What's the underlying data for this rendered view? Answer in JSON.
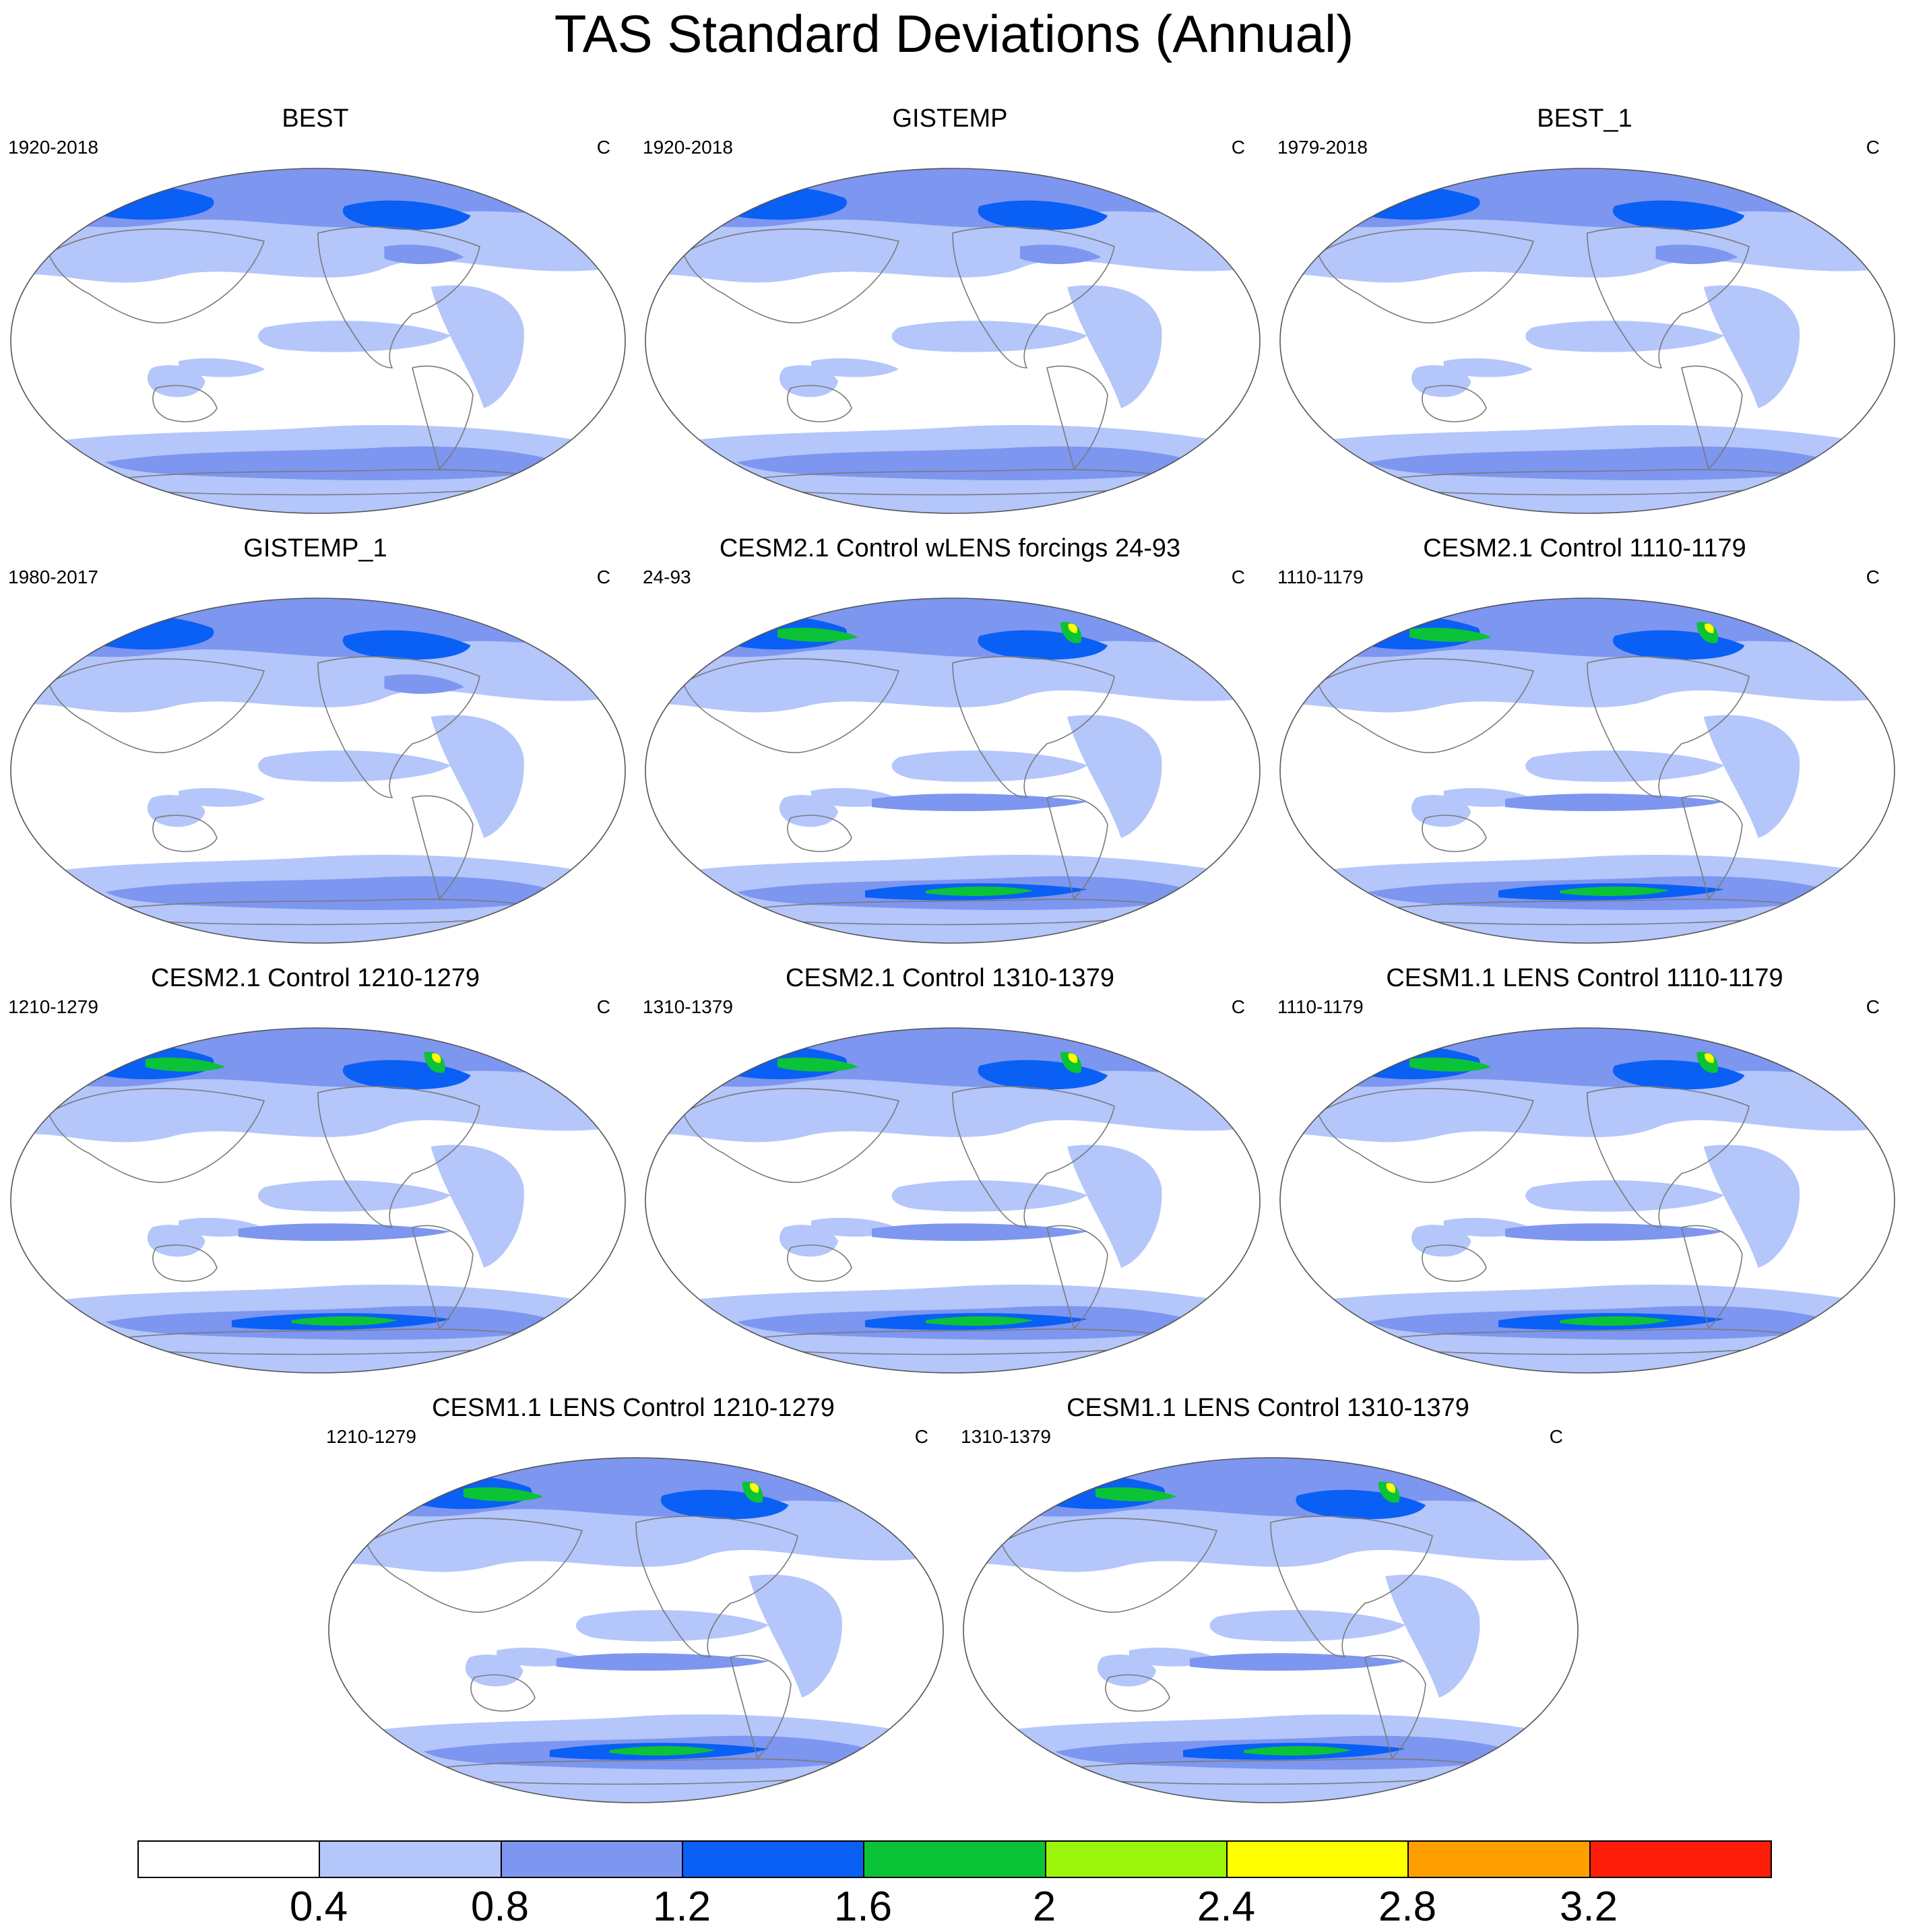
{
  "title": "TAS Standard Deviations (Annual)",
  "units": "C",
  "colors": {
    "levels": [
      "#ffffff",
      "#b4c6fa",
      "#7d96f0",
      "#0a5ff5",
      "#0ac336",
      "#9bf50a",
      "#ffff00",
      "#ffa000",
      "#ff1e0a"
    ],
    "coast": "#7a7a7a",
    "outline": "#555555"
  },
  "panels": [
    {
      "title": "BEST",
      "period": "1920-2018",
      "style": "obs"
    },
    {
      "title": "GISTEMP",
      "period": "1920-2018",
      "style": "obs"
    },
    {
      "title": "BEST_1",
      "period": "1979-2018",
      "style": "obs"
    },
    {
      "title": "GISTEMP_1",
      "period": "1980-2017",
      "style": "obs"
    },
    {
      "title": "CESM2.1 Control wLENS forcings 24-93",
      "period": "24-93",
      "style": "model"
    },
    {
      "title": "CESM2.1 Control 1110-1179",
      "period": "1110-1179",
      "style": "model"
    },
    {
      "title": "CESM2.1 Control 1210-1279",
      "period": "1210-1279",
      "style": "model"
    },
    {
      "title": "CESM2.1 Control 1310-1379",
      "period": "1310-1379",
      "style": "model"
    },
    {
      "title": "CESM1.1 LENS Control 1110-1179",
      "period": "1110-1179",
      "style": "model"
    },
    {
      "title": "CESM1.1 LENS Control 1210-1279",
      "period": "1210-1279",
      "style": "model"
    },
    {
      "title": "CESM1.1 LENS Control 1310-1379",
      "period": "1310-1379",
      "style": "model"
    }
  ],
  "colorbar": {
    "labels": [
      "0.4",
      "0.8",
      "1.2",
      "1.6",
      "2",
      "2.4",
      "2.8",
      "3.2"
    ]
  }
}
